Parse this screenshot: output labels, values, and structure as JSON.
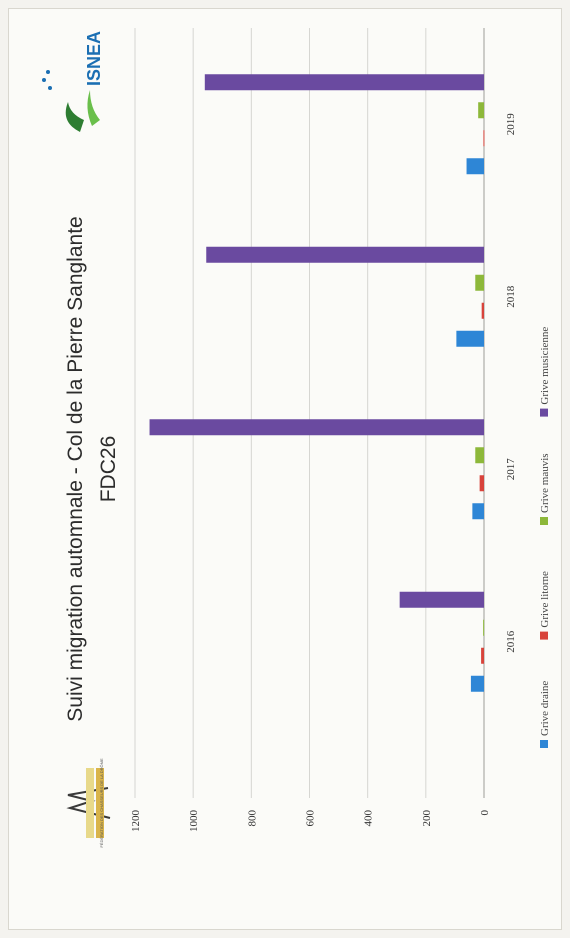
{
  "chart_data": {
    "type": "bar",
    "orientation": "rotated-90-ccw",
    "title": "Suivi migration automnale - Col de la Pierre Sanglante",
    "subtitle": "FDC26",
    "categories": [
      "2016",
      "2017",
      "2018",
      "2019"
    ],
    "series": [
      {
        "name": "Grive draine",
        "color": "#2e86d6",
        "values": [
          45,
          40,
          95,
          60
        ]
      },
      {
        "name": "Grive litorne",
        "color": "#d8433b",
        "values": [
          10,
          15,
          8,
          2
        ]
      },
      {
        "name": "Grive mauvis",
        "color": "#8db83a",
        "values": [
          3,
          30,
          30,
          20
        ]
      },
      {
        "name": "Grive musicienne",
        "color": "#6a4aa0",
        "values": [
          290,
          1150,
          955,
          960
        ]
      }
    ],
    "y_ticks": [
      "0",
      "200",
      "400",
      "600",
      "800",
      "1000",
      "1200"
    ],
    "ylim": [
      0,
      1200
    ],
    "grid": true,
    "legend_position": "bottom"
  },
  "logos": {
    "left_caption": "FÉDÉRATION DES CHASSEURS DE LA DRÔME",
    "right_text": "ISNEA"
  }
}
